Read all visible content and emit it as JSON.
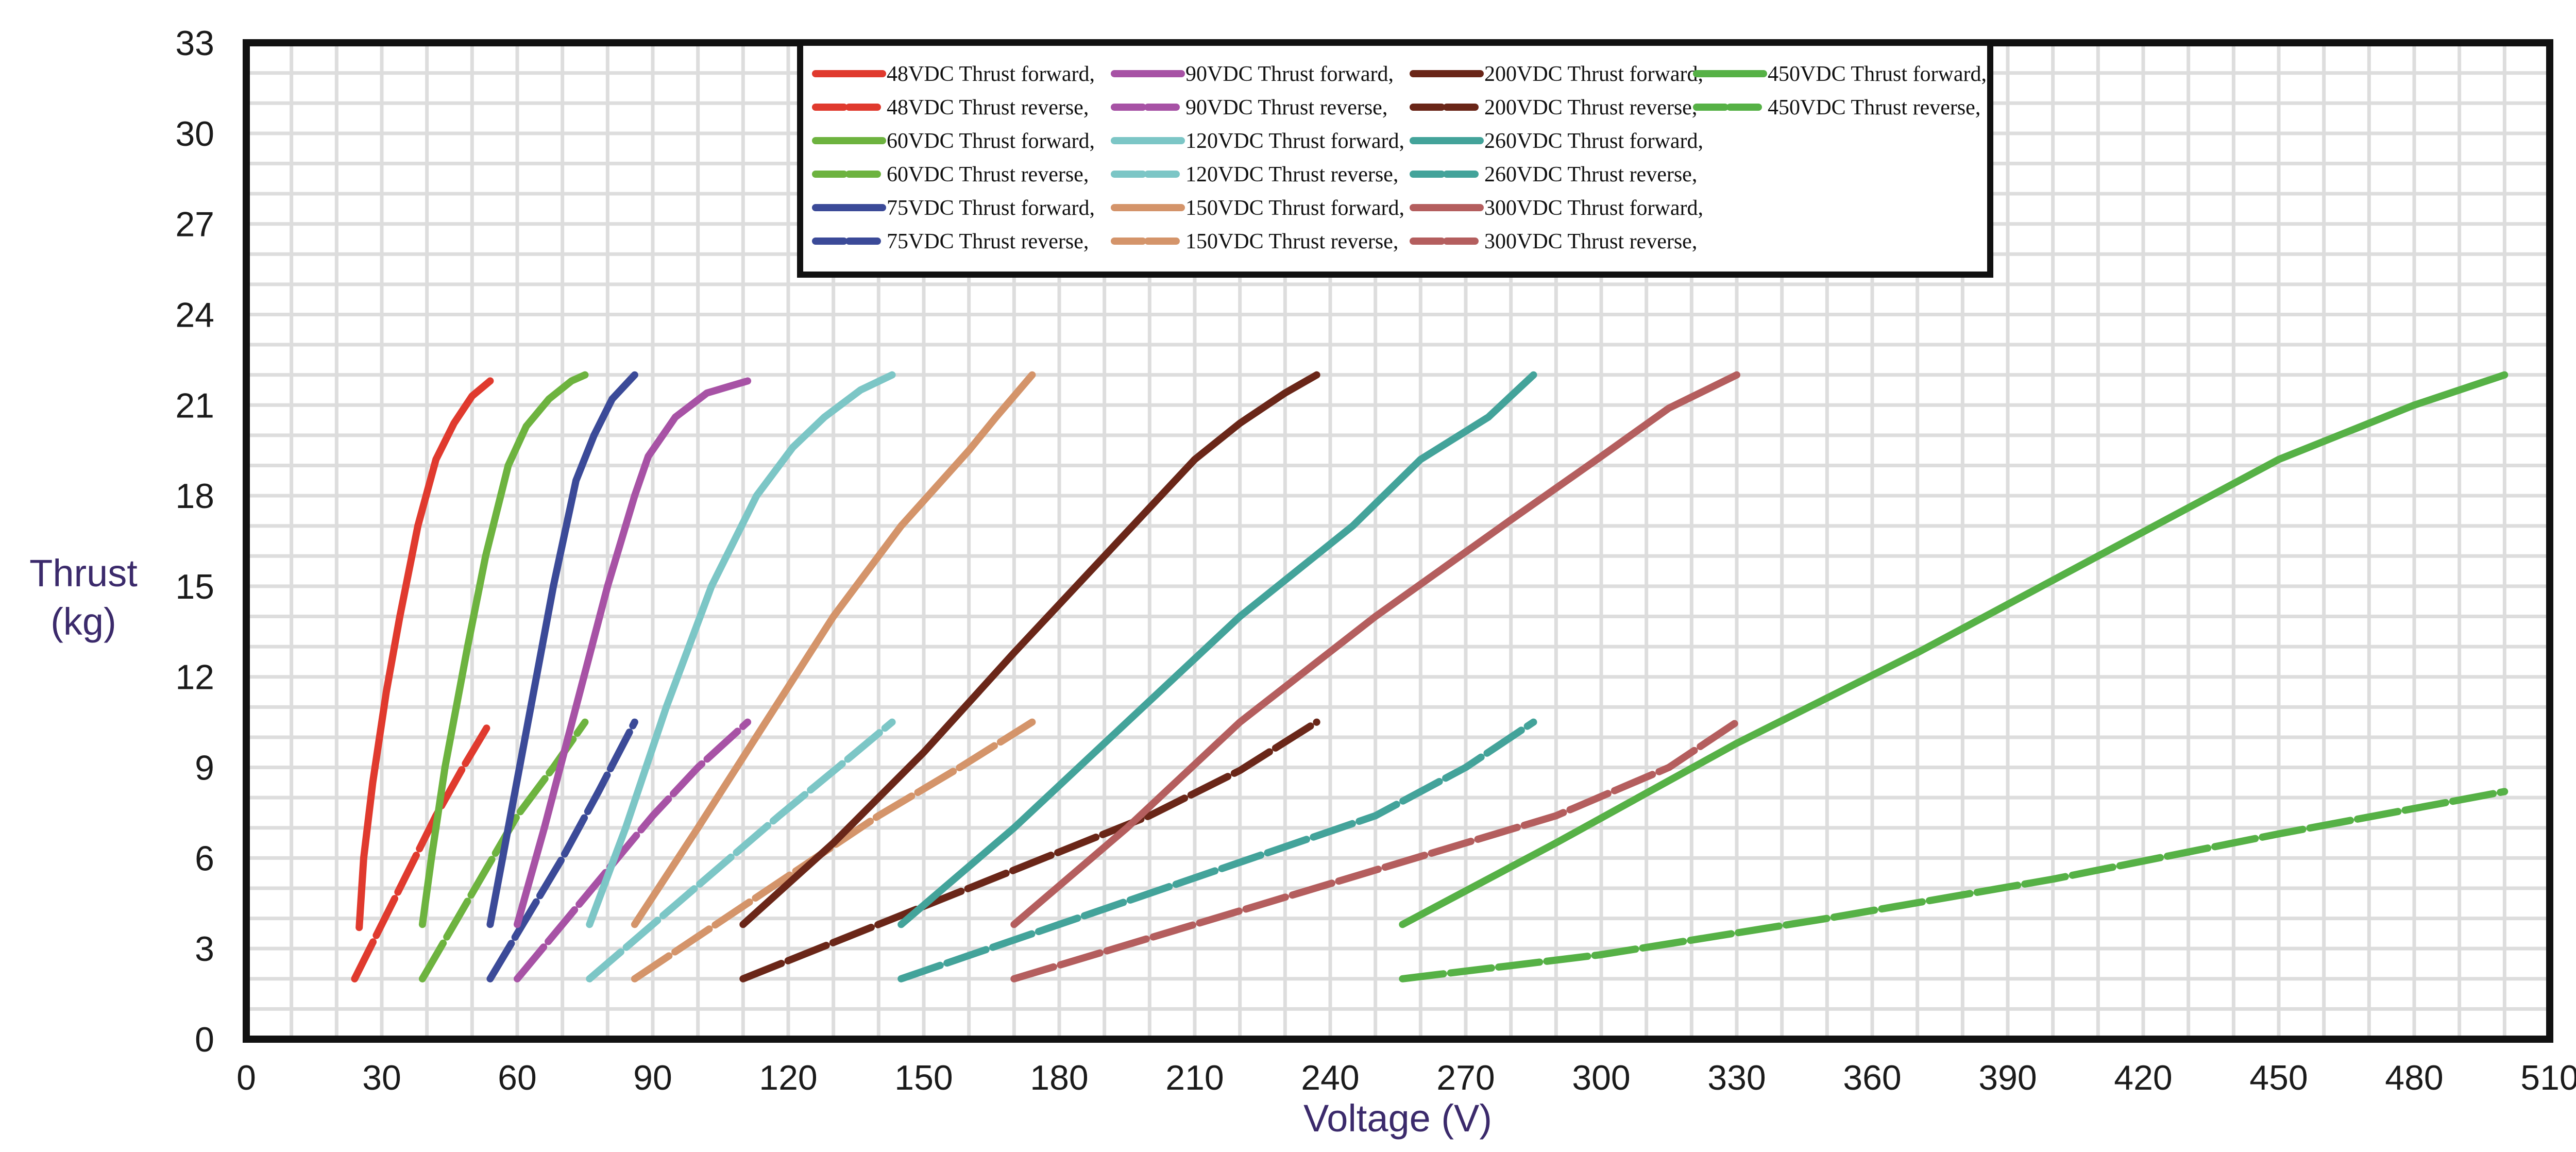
{
  "chart_data": {
    "type": "line",
    "title": "",
    "xlabel": "Voltage (V)",
    "ylabel_lines": [
      "Thrust",
      "(kg)"
    ],
    "xlim": [
      0,
      510
    ],
    "ylim": [
      0,
      33
    ],
    "x_ticks": [
      0,
      30,
      60,
      90,
      120,
      150,
      180,
      210,
      240,
      270,
      300,
      330,
      360,
      390,
      420,
      450,
      480,
      510
    ],
    "y_ticks": [
      0,
      3,
      6,
      9,
      12,
      15,
      18,
      21,
      24,
      27,
      30,
      33
    ],
    "grid": true,
    "legend_position": "top-center",
    "series": [
      {
        "name": "48VDC Thrust forward,",
        "color": "#e03a2e",
        "dash": "solid",
        "points": [
          [
            25,
            3.7
          ],
          [
            26,
            6
          ],
          [
            28,
            8.5
          ],
          [
            31,
            11.5
          ],
          [
            34,
            14
          ],
          [
            38,
            17
          ],
          [
            42,
            19.2
          ],
          [
            46,
            20.4
          ],
          [
            50,
            21.3
          ],
          [
            54,
            21.8
          ]
        ]
      },
      {
        "name": "48VDC Thrust reverse,",
        "color": "#e03a2e",
        "dash": "dashed",
        "points": [
          [
            24,
            2
          ],
          [
            30,
            3.8
          ],
          [
            36,
            5.6
          ],
          [
            42,
            7.4
          ],
          [
            48,
            9
          ],
          [
            54,
            10.5
          ]
        ]
      },
      {
        "name": "60VDC Thrust forward,",
        "color": "#6db33f",
        "dash": "solid",
        "points": [
          [
            39,
            3.8
          ],
          [
            41,
            6
          ],
          [
            44,
            9
          ],
          [
            49,
            13
          ],
          [
            53,
            16
          ],
          [
            58,
            19
          ],
          [
            62,
            20.3
          ],
          [
            67,
            21.2
          ],
          [
            72,
            21.8
          ],
          [
            75,
            22
          ]
        ]
      },
      {
        "name": "60VDC Thrust reverse,",
        "color": "#6db33f",
        "dash": "dashed",
        "points": [
          [
            39,
            2
          ],
          [
            46,
            3.8
          ],
          [
            53,
            5.6
          ],
          [
            60,
            7.4
          ],
          [
            68,
            9
          ],
          [
            75,
            10.5
          ]
        ]
      },
      {
        "name": "75VDC Thrust forward,",
        "color": "#3b4a98",
        "dash": "solid",
        "points": [
          [
            54,
            3.8
          ],
          [
            58,
            7
          ],
          [
            63,
            11
          ],
          [
            68,
            15
          ],
          [
            73,
            18.5
          ],
          [
            77,
            20
          ],
          [
            81,
            21.2
          ],
          [
            86,
            22
          ]
        ]
      },
      {
        "name": "75VDC Thrust reverse,",
        "color": "#3b4a98",
        "dash": "dashed",
        "points": [
          [
            54,
            2
          ],
          [
            62,
            4
          ],
          [
            70,
            6
          ],
          [
            78,
            8.2
          ],
          [
            86,
            10.5
          ]
        ]
      },
      {
        "name": "90VDC Thrust forward,",
        "color": "#a752a5",
        "dash": "solid",
        "points": [
          [
            60,
            3.8
          ],
          [
            66,
            7
          ],
          [
            73,
            11
          ],
          [
            80,
            15
          ],
          [
            86,
            18
          ],
          [
            89,
            19.3
          ],
          [
            95,
            20.6
          ],
          [
            102,
            21.4
          ],
          [
            111,
            21.8
          ]
        ]
      },
      {
        "name": "90VDC Thrust reverse,",
        "color": "#a752a5",
        "dash": "dashed",
        "points": [
          [
            60,
            2
          ],
          [
            70,
            3.8
          ],
          [
            80,
            5.6
          ],
          [
            90,
            7.4
          ],
          [
            100,
            9
          ],
          [
            111,
            10.5
          ]
        ]
      },
      {
        "name": "120VDC Thrust forward,",
        "color": "#7cc6c6",
        "dash": "solid",
        "points": [
          [
            76,
            3.8
          ],
          [
            84,
            7
          ],
          [
            93,
            11
          ],
          [
            103,
            15
          ],
          [
            113,
            18
          ],
          [
            121,
            19.6
          ],
          [
            128,
            20.6
          ],
          [
            136,
            21.5
          ],
          [
            143,
            22
          ]
        ]
      },
      {
        "name": "120VDC Thrust reverse,",
        "color": "#7cc6c6",
        "dash": "dashed",
        "points": [
          [
            76,
            2
          ],
          [
            90,
            3.8
          ],
          [
            104,
            5.6
          ],
          [
            118,
            7.4
          ],
          [
            131,
            9
          ],
          [
            143,
            10.5
          ]
        ]
      },
      {
        "name": "150VDC Thrust forward,",
        "color": "#d4946a",
        "dash": "solid",
        "points": [
          [
            86,
            3.8
          ],
          [
            100,
            7
          ],
          [
            115,
            10.5
          ],
          [
            130,
            14
          ],
          [
            145,
            17
          ],
          [
            160,
            19.5
          ],
          [
            166,
            20.6
          ],
          [
            174,
            22
          ]
        ]
      },
      {
        "name": "150VDC Thrust reverse,",
        "color": "#d4946a",
        "dash": "dashed",
        "points": [
          [
            86,
            2
          ],
          [
            104,
            3.8
          ],
          [
            122,
            5.6
          ],
          [
            140,
            7.4
          ],
          [
            158,
            9
          ],
          [
            174,
            10.5
          ]
        ]
      },
      {
        "name": "200VDC Thrust forward,",
        "color": "#6a2618",
        "dash": "solid",
        "points": [
          [
            110,
            3.8
          ],
          [
            130,
            6.5
          ],
          [
            150,
            9.5
          ],
          [
            170,
            12.8
          ],
          [
            190,
            16
          ],
          [
            210,
            19.2
          ],
          [
            220,
            20.4
          ],
          [
            230,
            21.4
          ],
          [
            237,
            22
          ]
        ]
      },
      {
        "name": "200VDC Thrust reverse,",
        "color": "#6a2618",
        "dash": "dashed",
        "points": [
          [
            110,
            2
          ],
          [
            140,
            3.8
          ],
          [
            170,
            5.6
          ],
          [
            200,
            7.4
          ],
          [
            220,
            8.9
          ],
          [
            237,
            10.5
          ]
        ]
      },
      {
        "name": "260VDC Thrust forward,",
        "color": "#43a39a",
        "dash": "solid",
        "points": [
          [
            145,
            3.8
          ],
          [
            170,
            7
          ],
          [
            195,
            10.5
          ],
          [
            220,
            14
          ],
          [
            245,
            17
          ],
          [
            260,
            19.2
          ],
          [
            275,
            20.6
          ],
          [
            285,
            22
          ]
        ]
      },
      {
        "name": "260VDC Thrust reverse,",
        "color": "#43a39a",
        "dash": "dashed",
        "points": [
          [
            145,
            2
          ],
          [
            180,
            3.8
          ],
          [
            215,
            5.6
          ],
          [
            250,
            7.4
          ],
          [
            270,
            9
          ],
          [
            285,
            10.5
          ]
        ]
      },
      {
        "name": "300VDC Thrust forward,",
        "color": "#b45e5e",
        "dash": "solid",
        "points": [
          [
            170,
            3.8
          ],
          [
            195,
            7
          ],
          [
            220,
            10.5
          ],
          [
            250,
            14
          ],
          [
            280,
            17.2
          ],
          [
            300,
            19.3
          ],
          [
            315,
            20.9
          ],
          [
            330,
            22
          ]
        ]
      },
      {
        "name": "300VDC Thrust reverse,",
        "color": "#b45e5e",
        "dash": "dashed",
        "points": [
          [
            170,
            2
          ],
          [
            210,
            3.8
          ],
          [
            250,
            5.6
          ],
          [
            290,
            7.4
          ],
          [
            315,
            9
          ],
          [
            330,
            10.5
          ]
        ]
      },
      {
        "name": "450VDC Thrust forward,",
        "color": "#56b146",
        "dash": "solid",
        "points": [
          [
            256,
            3.8
          ],
          [
            290,
            6.5
          ],
          [
            330,
            9.8
          ],
          [
            370,
            12.8
          ],
          [
            410,
            16
          ],
          [
            450,
            19.2
          ],
          [
            480,
            21
          ],
          [
            500,
            22
          ]
        ]
      },
      {
        "name": "450VDC Thrust reverse,",
        "color": "#56b146",
        "dash": "dashed",
        "points": [
          [
            256,
            2
          ],
          [
            300,
            2.8
          ],
          [
            350,
            4
          ],
          [
            400,
            5.3
          ],
          [
            450,
            6.8
          ],
          [
            500,
            8.2
          ]
        ]
      }
    ]
  }
}
